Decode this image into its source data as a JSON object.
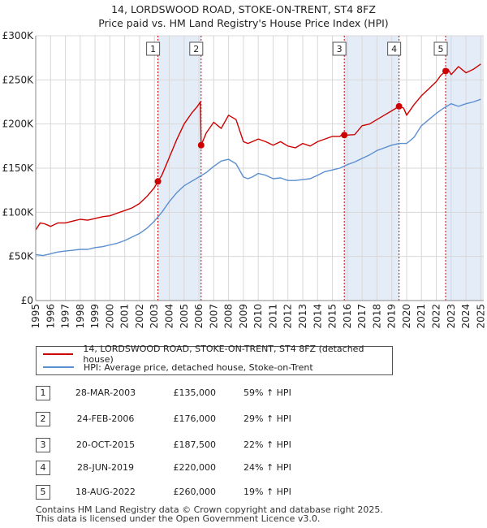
{
  "title_line1": "14, LORDSWOOD ROAD, STOKE-ON-TRENT, ST4 8FZ",
  "title_line2": "Price paid vs. HM Land Registry's House Price Index (HPI)",
  "colors": {
    "property": "#cc0000",
    "hpi": "#5b8fd0",
    "band": "#e4ecf8",
    "marker_line": "#cc0000"
  },
  "chart_data": {
    "type": "line",
    "title": "14, LORDSWOOD ROAD, STOKE-ON-TRENT, ST4 8FZ — Price paid vs. HM Land Registry's House Price Index (HPI)",
    "xlabel": "",
    "ylabel": "",
    "xlim": [
      1995,
      2025.2
    ],
    "ylim": [
      0,
      300000
    ],
    "y_ticks": [
      0,
      50000,
      100000,
      150000,
      200000,
      250000,
      300000
    ],
    "y_tick_labels": [
      "£0",
      "£50K",
      "£100K",
      "£150K",
      "£200K",
      "£250K",
      "£300K"
    ],
    "x_ticks": [
      1995,
      1996,
      1997,
      1998,
      1999,
      2000,
      2001,
      2002,
      2003,
      2004,
      2005,
      2006,
      2007,
      2008,
      2009,
      2010,
      2011,
      2012,
      2013,
      2014,
      2015,
      2016,
      2017,
      2018,
      2019,
      2020,
      2021,
      2022,
      2023,
      2024,
      2025
    ],
    "x_tick_labels": [
      "1995",
      "1996",
      "1997",
      "1998",
      "1999",
      "2000",
      "2001",
      "2002",
      "2003",
      "2004",
      "2005",
      "2006",
      "2007",
      "2008",
      "2009",
      "2010",
      "2011",
      "2012",
      "2013",
      "2014",
      "2015",
      "2016",
      "2017",
      "2018",
      "2019",
      "2020",
      "2021",
      "2022",
      "2023",
      "2024",
      "2025"
    ],
    "grid": true,
    "series": [
      {
        "name": "14, LORDSWOOD ROAD, STOKE-ON-TRENT, ST4 8FZ (detached house)",
        "color": "#cc0000",
        "x": [
          1995.0,
          1995.3,
          1995.6,
          1996.0,
          1996.5,
          1997.0,
          1997.5,
          1998.0,
          1998.5,
          1999.0,
          1999.5,
          2000.0,
          2000.5,
          2001.0,
          2001.5,
          2002.0,
          2002.5,
          2003.0,
          2003.24,
          2003.5,
          2004.0,
          2004.5,
          2005.0,
          2005.5,
          2005.9,
          2006.1,
          2006.15,
          2006.5,
          2007.0,
          2007.5,
          2008.0,
          2008.5,
          2009.0,
          2009.3,
          2009.6,
          2010.0,
          2010.5,
          2011.0,
          2011.5,
          2012.0,
          2012.5,
          2013.0,
          2013.5,
          2014.0,
          2014.5,
          2015.0,
          2015.5,
          2015.8,
          2016.0,
          2016.5,
          2017.0,
          2017.5,
          2018.0,
          2018.5,
          2019.0,
          2019.49,
          2019.8,
          2020.0,
          2020.5,
          2021.0,
          2021.5,
          2022.0,
          2022.3,
          2022.63,
          2022.8,
          2023.0,
          2023.5,
          2024.0,
          2024.5,
          2025.0
        ],
        "y": [
          80000,
          88000,
          87000,
          84000,
          88000,
          88000,
          90000,
          92000,
          91000,
          93000,
          95000,
          96000,
          99000,
          102000,
          105000,
          110000,
          118000,
          128000,
          135000,
          142000,
          162000,
          182000,
          200000,
          212000,
          220000,
          225000,
          176000,
          190000,
          202000,
          195000,
          210000,
          205000,
          180000,
          178000,
          180000,
          183000,
          180000,
          176000,
          180000,
          175000,
          173000,
          178000,
          175000,
          180000,
          183000,
          186000,
          186000,
          190000,
          187500,
          188000,
          198000,
          200000,
          205000,
          210000,
          215000,
          220000,
          218000,
          210000,
          222000,
          232000,
          240000,
          248000,
          255000,
          260000,
          262000,
          256000,
          265000,
          258000,
          262000,
          268000
        ]
      },
      {
        "name": "HPI: Average price, detached house, Stoke-on-Trent",
        "color": "#5b8fd0",
        "x": [
          1995.0,
          1995.5,
          1996.0,
          1996.5,
          1997.0,
          1997.5,
          1998.0,
          1998.5,
          1999.0,
          1999.5,
          2000.0,
          2000.5,
          2001.0,
          2001.5,
          2002.0,
          2002.5,
          2003.0,
          2003.5,
          2004.0,
          2004.5,
          2005.0,
          2005.5,
          2006.0,
          2006.5,
          2007.0,
          2007.5,
          2008.0,
          2008.5,
          2009.0,
          2009.3,
          2009.6,
          2010.0,
          2010.5,
          2011.0,
          2011.5,
          2012.0,
          2012.5,
          2013.0,
          2013.5,
          2014.0,
          2014.5,
          2015.0,
          2015.5,
          2016.0,
          2016.5,
          2017.0,
          2017.5,
          2018.0,
          2018.5,
          2019.0,
          2019.5,
          2020.0,
          2020.5,
          2021.0,
          2021.5,
          2022.0,
          2022.5,
          2023.0,
          2023.5,
          2024.0,
          2024.5,
          2025.0
        ],
        "y": [
          52000,
          51000,
          53000,
          55000,
          56000,
          57000,
          58000,
          58000,
          60000,
          61000,
          63000,
          65000,
          68000,
          72000,
          76000,
          82000,
          90000,
          100000,
          112000,
          122000,
          130000,
          135000,
          140000,
          145000,
          152000,
          158000,
          160000,
          155000,
          140000,
          138000,
          140000,
          144000,
          142000,
          138000,
          139000,
          136000,
          136000,
          137000,
          138000,
          142000,
          146000,
          148000,
          150000,
          154000,
          157000,
          161000,
          165000,
          170000,
          173000,
          176000,
          178000,
          178000,
          185000,
          198000,
          205000,
          212000,
          218000,
          223000,
          220000,
          223000,
          225000,
          228000
        ]
      }
    ],
    "sale_markers": [
      {
        "label": "1",
        "x": 2003.24,
        "y": 135000
      },
      {
        "label": "2",
        "x": 2006.15,
        "y": 176000
      },
      {
        "label": "3",
        "x": 2015.8,
        "y": 187500
      },
      {
        "label": "4",
        "x": 2019.49,
        "y": 220000
      },
      {
        "label": "5",
        "x": 2022.63,
        "y": 260000
      }
    ],
    "shaded_bands": [
      [
        2003.24,
        2006.15
      ],
      [
        2015.8,
        2019.49
      ],
      [
        2022.63,
        2025.2
      ]
    ]
  },
  "legend": {
    "items": [
      {
        "label": "14, LORDSWOOD ROAD, STOKE-ON-TRENT, ST4 8FZ (detached house)",
        "color": "#cc0000"
      },
      {
        "label": "HPI: Average price, detached house, Stoke-on-Trent",
        "color": "#5b8fd0"
      }
    ]
  },
  "transactions": [
    {
      "num": "1",
      "date": "28-MAR-2003",
      "price": "£135,000",
      "hpi": "59% ↑ HPI"
    },
    {
      "num": "2",
      "date": "24-FEB-2006",
      "price": "£176,000",
      "hpi": "29% ↑ HPI"
    },
    {
      "num": "3",
      "date": "20-OCT-2015",
      "price": "£187,500",
      "hpi": "22% ↑ HPI"
    },
    {
      "num": "4",
      "date": "28-JUN-2019",
      "price": "£220,000",
      "hpi": "24% ↑ HPI"
    },
    {
      "num": "5",
      "date": "18-AUG-2022",
      "price": "£260,000",
      "hpi": "19% ↑ HPI"
    }
  ],
  "footer": {
    "line1": "Contains HM Land Registry data © Crown copyright and database right 2025.",
    "line2": "This data is licensed under the Open Government Licence v3.0."
  }
}
